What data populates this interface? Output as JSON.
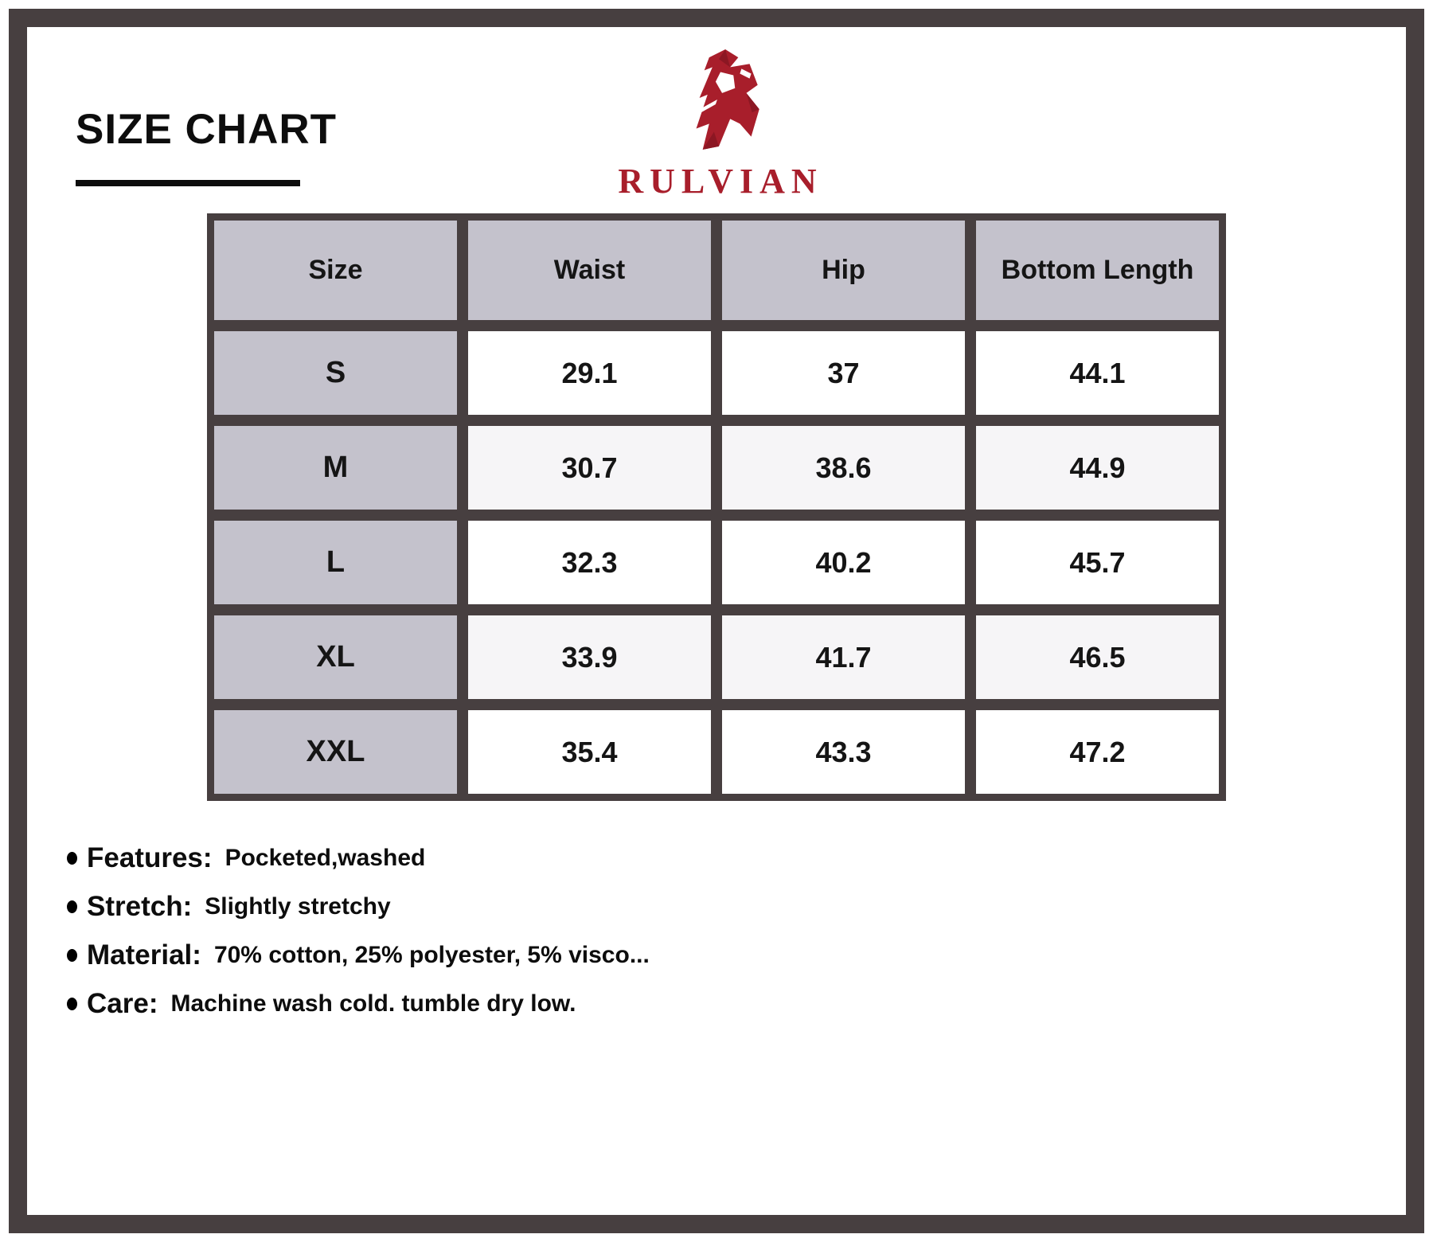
{
  "header": {
    "title": "SIZE CHART"
  },
  "brand": {
    "wordmark": "RULVIAN",
    "logo_icon": "angular-r-icon",
    "color": "#A81E2B"
  },
  "size_table": {
    "columns": [
      "Size",
      "Waist",
      "Hip",
      "Bottom Length"
    ],
    "rows": [
      {
        "size": "S",
        "values": [
          "29.1",
          "37",
          "44.1"
        ]
      },
      {
        "size": "M",
        "values": [
          "30.7",
          "38.6",
          "44.9"
        ]
      },
      {
        "size": "L",
        "values": [
          "32.3",
          "40.2",
          "45.7"
        ]
      },
      {
        "size": "XL",
        "values": [
          "33.9",
          "41.7",
          "46.5"
        ]
      },
      {
        "size": "XXL",
        "values": [
          "35.4",
          "43.3",
          "47.2"
        ]
      }
    ]
  },
  "details": [
    {
      "label": "Features:",
      "value": "Pocketed,washed"
    },
    {
      "label": "Stretch:",
      "value": "Slightly stretchy"
    },
    {
      "label": "Material:",
      "value": "70% cotton, 25% polyester, 5% visco..."
    },
    {
      "label": "Care:",
      "value": "Machine wash cold. tumble dry low."
    }
  ],
  "colors": {
    "frame": "#473F40",
    "table_grout": "#473F40",
    "table_header_bg": "#C4C2CC",
    "row_bg": "#FFFFFF",
    "row_alt_bg": "#F6F5F7",
    "brand_red": "#A81E2B",
    "text": "#0D0D0D"
  }
}
